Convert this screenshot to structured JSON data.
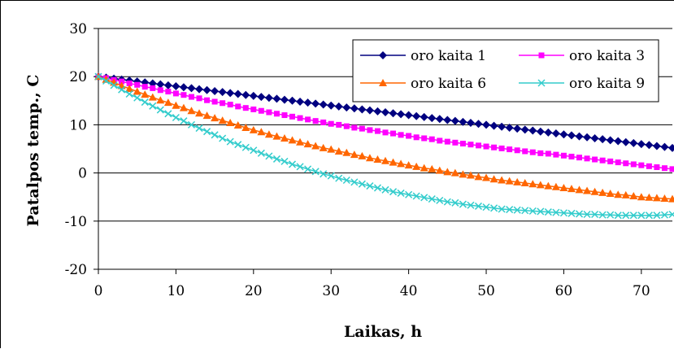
{
  "chart_data": {
    "type": "line",
    "title": "",
    "xlabel": "Laikas, h",
    "ylabel": "Patalpos temp., C",
    "xlim": [
      0,
      74
    ],
    "ylim": [
      -20,
      30
    ],
    "xticks": [
      "0",
      "10",
      "20",
      "30",
      "40",
      "50",
      "60",
      "70"
    ],
    "yticks": [
      "30",
      "20",
      "10",
      "0",
      "-10",
      "-20"
    ],
    "grid": "horizontal major gridlines",
    "legend_position": "top-right",
    "x_step": 1,
    "series": [
      {
        "name": "oro kaita 1",
        "color": "#000080",
        "marker": "diamond",
        "values": [
          20.0,
          19.8,
          19.6,
          19.4,
          19.2,
          19.0,
          18.8,
          18.6,
          18.4,
          18.2,
          18.0,
          17.8,
          17.6,
          17.4,
          17.2,
          17.0,
          16.8,
          16.6,
          16.4,
          16.2,
          16.0,
          15.8,
          15.6,
          15.4,
          15.2,
          15.0,
          14.8,
          14.6,
          14.4,
          14.2,
          14.0,
          13.8,
          13.6,
          13.4,
          13.2,
          13.0,
          12.8,
          12.6,
          12.4,
          12.2,
          12.0,
          11.8,
          11.6,
          11.4,
          11.2,
          11.0,
          10.8,
          10.6,
          10.4,
          10.2,
          10.0,
          9.8,
          9.6,
          9.4,
          9.2,
          9.0,
          8.8,
          8.6,
          8.4,
          8.2,
          8.0,
          7.8,
          7.6,
          7.4,
          7.2,
          7.0,
          6.8,
          6.6,
          6.4,
          6.2,
          6.0,
          5.8,
          5.6,
          5.4,
          5.2
        ]
      },
      {
        "name": "oro kaita 3",
        "color": "#FF00FF",
        "marker": "square",
        "values": [
          20.0,
          19.7,
          19.3,
          19.0,
          18.6,
          18.3,
          17.9,
          17.6,
          17.2,
          16.9,
          16.5,
          16.2,
          15.8,
          15.5,
          15.1,
          14.8,
          14.5,
          14.2,
          13.8,
          13.5,
          13.2,
          12.9,
          12.6,
          12.3,
          12.0,
          11.7,
          11.4,
          11.1,
          10.8,
          10.5,
          10.2,
          10.0,
          9.7,
          9.4,
          9.2,
          8.9,
          8.7,
          8.4,
          8.2,
          7.9,
          7.7,
          7.4,
          7.2,
          7.0,
          6.7,
          6.5,
          6.3,
          6.1,
          5.9,
          5.7,
          5.5,
          5.3,
          5.1,
          4.9,
          4.7,
          4.5,
          4.3,
          4.1,
          4.0,
          3.8,
          3.6,
          3.4,
          3.2,
          3.0,
          2.8,
          2.6,
          2.4,
          2.2,
          2.0,
          1.8,
          1.6,
          1.4,
          1.2,
          1.0,
          0.8
        ]
      },
      {
        "name": "oro kaita 6",
        "color": "#FF6600",
        "marker": "triangle",
        "values": [
          20.0,
          19.4,
          18.8,
          18.1,
          17.5,
          16.9,
          16.3,
          15.7,
          15.1,
          14.6,
          14.0,
          13.5,
          12.9,
          12.4,
          11.9,
          11.4,
          10.9,
          10.4,
          9.9,
          9.4,
          8.9,
          8.5,
          8.0,
          7.6,
          7.2,
          6.8,
          6.4,
          6.0,
          5.6,
          5.2,
          4.9,
          4.5,
          4.2,
          3.8,
          3.5,
          3.1,
          2.8,
          2.5,
          2.2,
          1.9,
          1.6,
          1.3,
          1.0,
          0.8,
          0.5,
          0.2,
          0.0,
          -0.3,
          -0.5,
          -0.8,
          -1.0,
          -1.3,
          -1.5,
          -1.7,
          -1.9,
          -2.1,
          -2.3,
          -2.5,
          -2.7,
          -2.9,
          -3.1,
          -3.3,
          -3.5,
          -3.7,
          -3.9,
          -4.1,
          -4.3,
          -4.5,
          -4.6,
          -4.8,
          -5.0,
          -5.1,
          -5.2,
          -5.3,
          -5.4
        ]
      },
      {
        "name": "oro kaita 9",
        "color": "#33CCCC",
        "marker": "x",
        "values": [
          20.0,
          19.1,
          18.2,
          17.3,
          16.4,
          15.6,
          14.7,
          13.9,
          13.1,
          12.3,
          11.5,
          10.8,
          10.0,
          9.3,
          8.6,
          7.9,
          7.2,
          6.5,
          5.9,
          5.3,
          4.7,
          4.1,
          3.5,
          2.9,
          2.4,
          1.8,
          1.3,
          0.8,
          0.3,
          -0.2,
          -0.6,
          -1.1,
          -1.5,
          -1.9,
          -2.3,
          -2.7,
          -3.1,
          -3.5,
          -3.9,
          -4.2,
          -4.5,
          -4.8,
          -5.1,
          -5.4,
          -5.7,
          -6.0,
          -6.2,
          -6.5,
          -6.7,
          -6.9,
          -7.1,
          -7.3,
          -7.5,
          -7.6,
          -7.7,
          -7.8,
          -7.9,
          -8.0,
          -8.1,
          -8.2,
          -8.3,
          -8.4,
          -8.5,
          -8.6,
          -8.6,
          -8.7,
          -8.7,
          -8.8,
          -8.8,
          -8.8,
          -8.8,
          -8.8,
          -8.8,
          -8.7,
          -8.6
        ]
      }
    ]
  }
}
